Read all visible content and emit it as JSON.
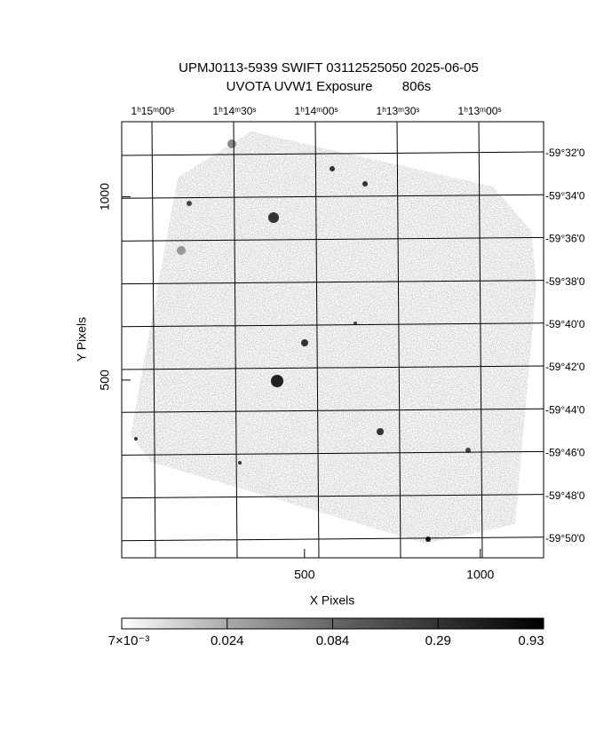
{
  "chart_data": {
    "type": "image",
    "title": "UPMJ0113-5939 SWIFT 03112525050 2025-06-05",
    "subtitle": "UVOTA UVW1 Exposure        806s",
    "xlabel": "X Pixels",
    "ylabel": "Y Pixels",
    "xlim": [
      -20,
      1180
    ],
    "ylim": [
      15,
      1205
    ],
    "xticks": [
      500,
      1000
    ],
    "yticks": [
      500,
      1000
    ],
    "ra_labels": [
      "1ʰ15ᵐ00ˢ",
      "1ʰ14ᵐ30ˢ",
      "1ʰ14ᵐ00ˢ",
      "1ʰ13ᵐ30ˢ",
      "1ʰ13ᵐ00ˢ"
    ],
    "dec_labels": [
      "-59°32'0",
      "-59°34'0",
      "-59°36'0",
      "-59°38'0",
      "-59°40'0",
      "-59°42'0",
      "-59°44'0",
      "-59°46'0",
      "-59°48'0",
      "-59°50'0"
    ],
    "colorbar_labels": [
      "7×10⁻³",
      "0.024",
      "0.084",
      "0.29",
      "0.93"
    ]
  }
}
